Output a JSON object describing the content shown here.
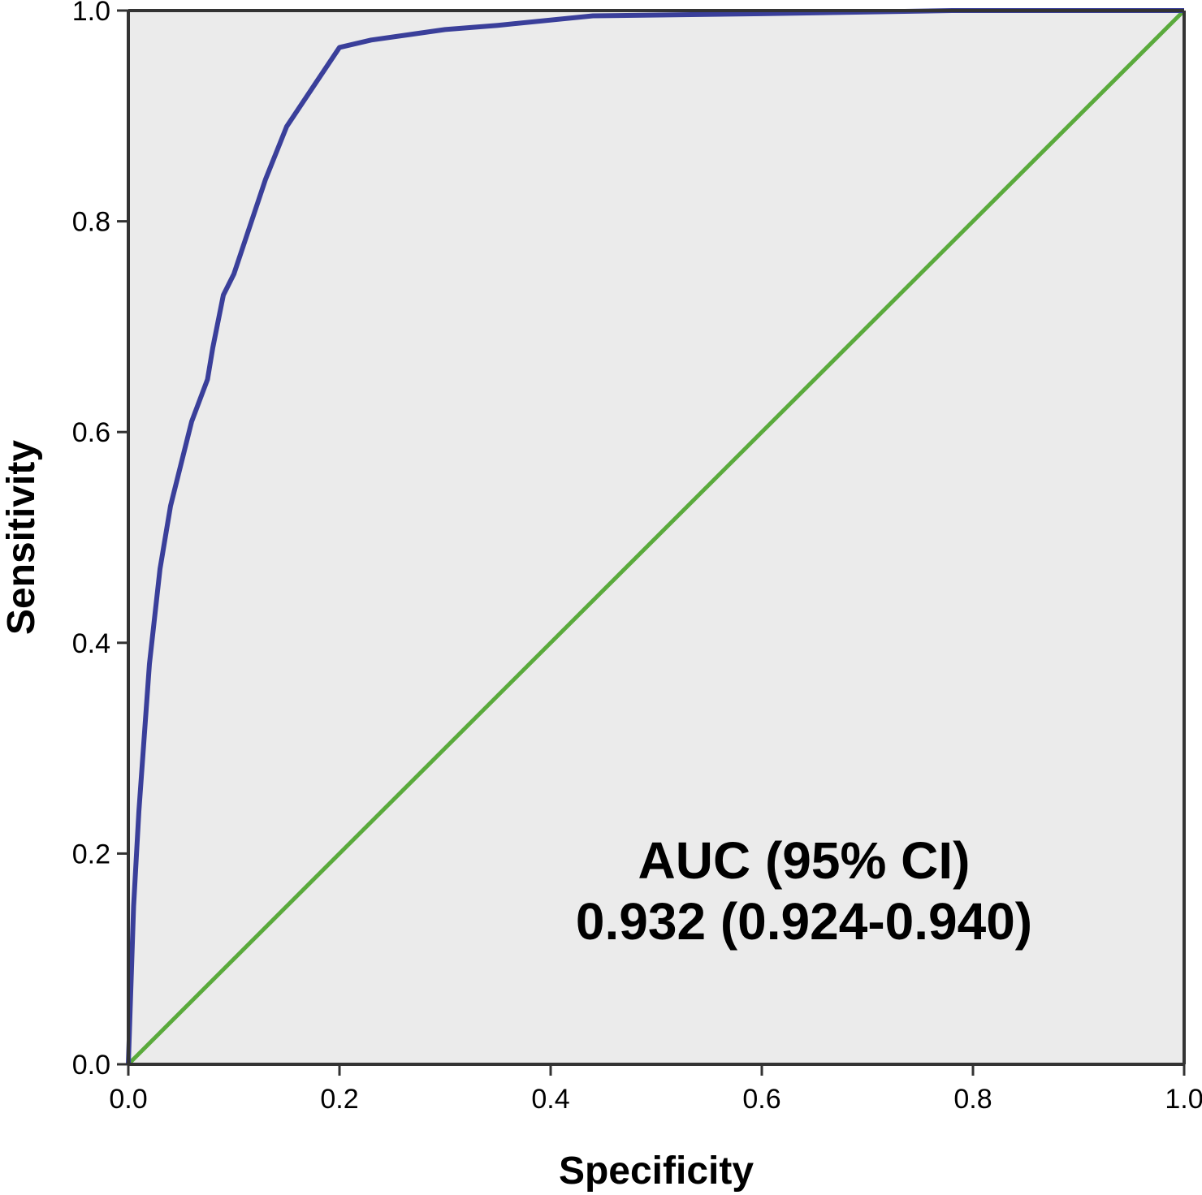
{
  "chart_data": {
    "type": "line",
    "xlabel": "Specificity",
    "ylabel": "Sensitivity",
    "xlim": [
      0,
      1
    ],
    "ylim": [
      0,
      1
    ],
    "x_ticks": [
      "0.0",
      "0.2",
      "0.4",
      "0.6",
      "0.8",
      "1.0"
    ],
    "y_ticks": [
      "0.0",
      "0.2",
      "0.4",
      "0.6",
      "0.8",
      "1.0"
    ],
    "grid": false,
    "background_color": "#ebebeb",
    "annotation": {
      "line1": "AUC (95% CI)",
      "line2": "0.932 (0.924-0.940)"
    },
    "series": [
      {
        "color": "#3a3f9a",
        "x": [
          0.0,
          0.005,
          0.01,
          0.02,
          0.03,
          0.04,
          0.045,
          0.05,
          0.06,
          0.075,
          0.08,
          0.09,
          0.1,
          0.11,
          0.13,
          0.15,
          0.17,
          0.2,
          0.23,
          0.3,
          0.35,
          0.44,
          0.6,
          0.78,
          1.0
        ],
        "y": [
          0.0,
          0.15,
          0.24,
          0.38,
          0.47,
          0.53,
          0.55,
          0.57,
          0.61,
          0.65,
          0.68,
          0.73,
          0.75,
          0.78,
          0.84,
          0.89,
          0.92,
          0.965,
          0.972,
          0.982,
          0.986,
          0.995,
          0.997,
          1.0,
          1.0
        ]
      },
      {
        "color": "#5aaa3c",
        "x": [
          0.0,
          1.0
        ],
        "y": [
          0.0,
          1.0
        ]
      }
    ]
  }
}
